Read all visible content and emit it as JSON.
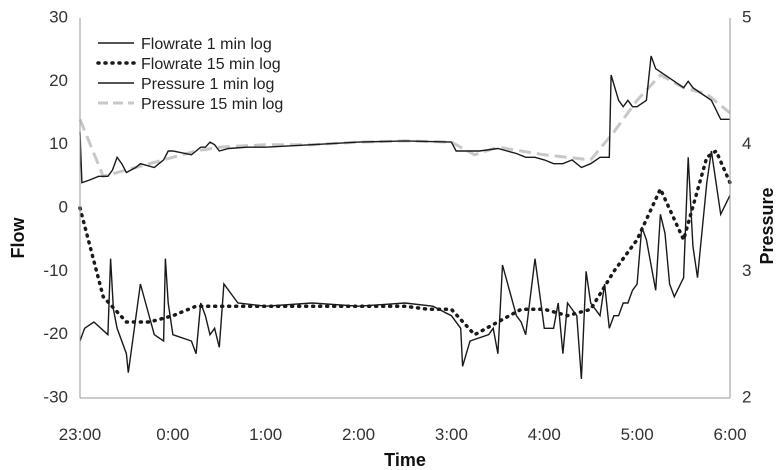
{
  "chart_data": {
    "type": "line",
    "xlabel": "Time",
    "ylabel_left": "Flow",
    "ylabel_right": "Pressure",
    "x_ticks": [
      "23:00",
      "0:00",
      "1:00",
      "2:00",
      "3:00",
      "4:00",
      "5:00",
      "6:00"
    ],
    "x_range_hours": [
      23,
      30
    ],
    "y_left": {
      "min": -30,
      "max": 30,
      "ticks": [
        "-30",
        "-20",
        "-10",
        "0",
        "10",
        "20",
        "30"
      ]
    },
    "y_right": {
      "min": 2,
      "max": 5,
      "ticks": [
        "2",
        "3",
        "4",
        "5"
      ]
    },
    "grid": false,
    "legend_position": "top-left",
    "colors": {
      "line": "#1a1a1a",
      "dotted": "#1a1a1a",
      "dashed": "#c8c8c8",
      "axis": "#9a9a9a"
    },
    "series": [
      {
        "name": "Flowrate 1 min log",
        "axis": "left",
        "style": "solid",
        "x": [
          23.0,
          23.05,
          23.15,
          23.3,
          23.33,
          23.36,
          23.4,
          23.5,
          23.52,
          23.65,
          23.8,
          23.9,
          23.92,
          23.95,
          24.0,
          24.2,
          24.25,
          24.3,
          24.35,
          24.4,
          24.45,
          24.5,
          24.55,
          24.7,
          25.0,
          25.5,
          26.0,
          26.5,
          26.8,
          27.0,
          27.1,
          27.12,
          27.2,
          27.4,
          27.45,
          27.5,
          27.55,
          27.7,
          27.75,
          27.8,
          27.9,
          28.0,
          28.1,
          28.15,
          28.2,
          28.25,
          28.35,
          28.4,
          28.45,
          28.5,
          28.6,
          28.65,
          28.7,
          28.75,
          28.8,
          28.85,
          28.9,
          28.95,
          29.0,
          29.05,
          29.1,
          29.2,
          29.25,
          29.3,
          29.35,
          29.4,
          29.5,
          29.55,
          29.6,
          29.65,
          29.75,
          29.8,
          29.9,
          30.0
        ],
        "y": [
          -21,
          -19,
          -18,
          -20,
          -8,
          -16,
          -19,
          -23,
          -26,
          -12,
          -20,
          -21,
          -8,
          -15,
          -20,
          -21,
          -23,
          -15,
          -17,
          -20,
          -19,
          -22,
          -12,
          -15,
          -15.5,
          -15,
          -15.5,
          -15,
          -15.5,
          -17,
          -19,
          -25,
          -21,
          -20,
          -19,
          -23,
          -9,
          -17,
          -18,
          -20,
          -8,
          -19,
          -19,
          -15,
          -23,
          -15,
          -17,
          -27,
          -10,
          -15,
          -17,
          -12,
          -19,
          -17,
          -17,
          -15,
          -15,
          -13,
          -12,
          -3,
          -5,
          -13,
          -1,
          -4,
          -12,
          -14,
          -11,
          8,
          -6,
          -11,
          4,
          9,
          -1,
          2
        ]
      },
      {
        "name": "Flowrate 15 min log",
        "axis": "left",
        "style": "dotted",
        "x": [
          23.0,
          23.25,
          23.5,
          23.75,
          24.0,
          24.25,
          24.5,
          24.75,
          25.0,
          25.25,
          25.5,
          25.75,
          26.0,
          26.25,
          26.5,
          26.75,
          27.0,
          27.25,
          27.5,
          27.75,
          28.0,
          28.25,
          28.5,
          28.75,
          29.0,
          29.25,
          29.5,
          29.75,
          29.85,
          30.0
        ],
        "y": [
          0,
          -14,
          -18,
          -18,
          -17,
          -15.5,
          -15.5,
          -15.5,
          -15.5,
          -15.5,
          -15.5,
          -15.5,
          -15.5,
          -15.5,
          -15.5,
          -16,
          -16,
          -20,
          -18,
          -16,
          -16,
          -17,
          -16,
          -10,
          -5,
          3,
          -5,
          8,
          9,
          4
        ]
      },
      {
        "name": "Pressure 1 min log",
        "axis": "right",
        "style": "solid",
        "x": [
          23.0,
          23.02,
          23.1,
          23.2,
          23.3,
          23.35,
          23.4,
          23.45,
          23.5,
          23.55,
          23.6,
          23.65,
          23.8,
          23.85,
          23.9,
          23.95,
          24.0,
          24.2,
          24.25,
          24.3,
          24.35,
          24.4,
          24.45,
          24.5,
          24.6,
          24.8,
          25.0,
          25.5,
          26.0,
          26.5,
          27.0,
          27.05,
          27.1,
          27.3,
          27.5,
          27.6,
          27.7,
          27.8,
          27.9,
          28.0,
          28.1,
          28.2,
          28.3,
          28.4,
          28.5,
          28.6,
          28.7,
          28.72,
          28.8,
          28.85,
          28.9,
          28.95,
          29.0,
          29.1,
          29.15,
          29.2,
          29.4,
          29.5,
          29.55,
          29.6,
          29.7,
          29.8,
          29.9,
          30.0
        ],
        "y": [
          4.1,
          3.7,
          3.72,
          3.75,
          3.75,
          3.8,
          3.9,
          3.85,
          3.78,
          3.8,
          3.82,
          3.85,
          3.82,
          3.85,
          3.88,
          3.95,
          3.95,
          3.92,
          3.95,
          3.98,
          3.98,
          4.02,
          4.0,
          3.95,
          3.97,
          3.98,
          3.98,
          4.0,
          4.02,
          4.03,
          4.02,
          3.95,
          3.95,
          3.95,
          3.97,
          3.95,
          3.93,
          3.9,
          3.9,
          3.88,
          3.85,
          3.85,
          3.88,
          3.82,
          3.85,
          3.9,
          3.9,
          4.55,
          4.35,
          4.3,
          4.35,
          4.3,
          4.3,
          4.35,
          4.7,
          4.6,
          4.5,
          4.45,
          4.5,
          4.45,
          4.4,
          4.35,
          4.2,
          4.2
        ]
      },
      {
        "name": "Pressure 15 min log",
        "axis": "right",
        "style": "dashed",
        "x": [
          23.0,
          23.25,
          23.5,
          23.75,
          24.0,
          24.25,
          24.5,
          25.0,
          25.5,
          26.0,
          26.5,
          27.0,
          27.25,
          27.5,
          27.75,
          28.0,
          28.25,
          28.5,
          28.75,
          29.0,
          29.25,
          29.5,
          29.75,
          30.0
        ],
        "y": [
          4.2,
          3.75,
          3.8,
          3.85,
          3.9,
          3.95,
          3.98,
          4.0,
          4.0,
          4.02,
          4.03,
          4.02,
          3.92,
          3.98,
          3.95,
          3.92,
          3.9,
          3.88,
          4.1,
          4.35,
          4.55,
          4.45,
          4.4,
          4.25
        ]
      }
    ]
  }
}
